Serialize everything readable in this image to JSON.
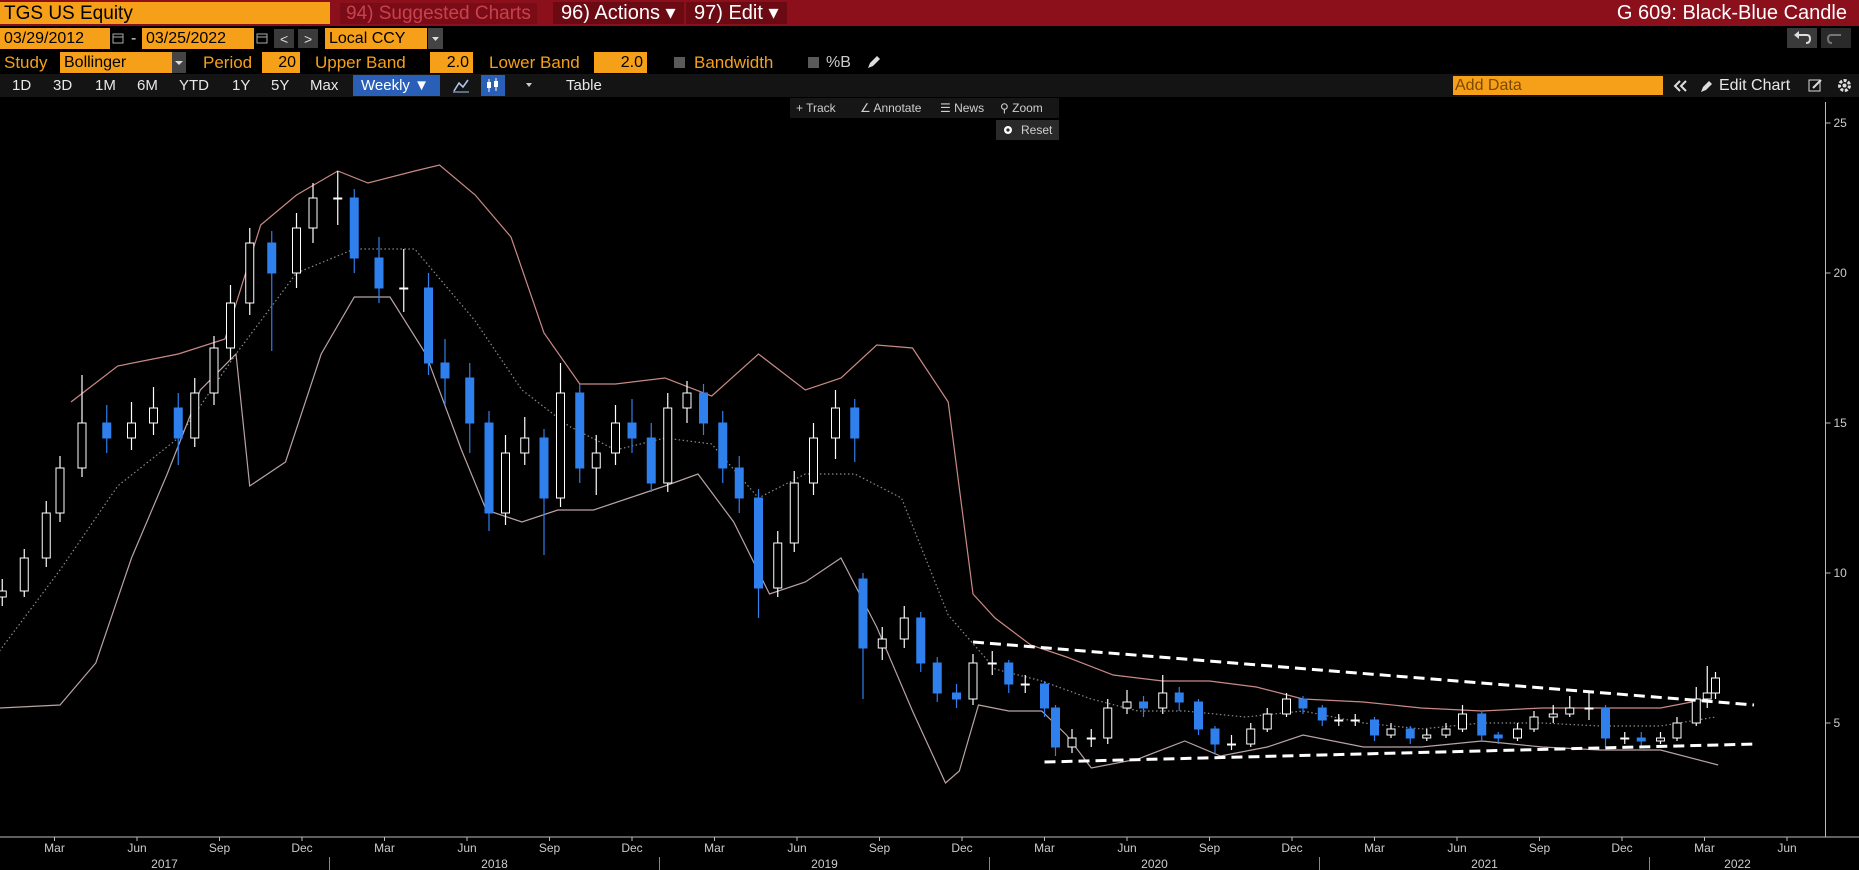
{
  "ui": {
    "top_bar": {
      "ticker": "TGS US Equity",
      "suggested": "94) Suggested Charts",
      "actions": "96) Actions ▾",
      "edit": "97) Edit ▾",
      "chart_name": "G 609: Black-Blue Candle"
    },
    "range_bar": {
      "start": "03/29/2012",
      "dash": "-",
      "end": "03/25/2022",
      "prev": "<",
      "next": ">",
      "currency": "Local CCY"
    },
    "study_bar": {
      "study_label": "Study",
      "study": "Bollinger",
      "period_label": "Period",
      "period": "20",
      "upper_label": "Upper Band",
      "upper": "2.0",
      "lower_label": "Lower Band",
      "lower": "2.0",
      "bandwidth": "Bandwidth",
      "pct_b": "%B"
    },
    "toolbar": {
      "periods": [
        "1D",
        "3D",
        "1M",
        "6M",
        "YTD",
        "1Y",
        "5Y",
        "Max"
      ],
      "frequency": "Weekly ▼",
      "table": "Table",
      "add_data": "Add Data",
      "edit_chart": "Edit Chart"
    },
    "chart_tools": [
      "Track",
      "Annotate",
      "News",
      "Zoom"
    ],
    "reset": "Reset"
  },
  "chart_data": {
    "type": "candlestick",
    "up_color": "#ffffff",
    "down_color": "#2f80ed",
    "y_axis": "right",
    "grid": false,
    "xlim": [
      0,
      66.4
    ],
    "ylim": [
      1.2,
      25.7
    ],
    "yticks": [
      5,
      10,
      15,
      20,
      25
    ],
    "xticks": [
      {
        "value": 2,
        "label": "Mar"
      },
      {
        "value": 5,
        "label": "Jun"
      },
      {
        "value": 8,
        "label": "Sep"
      },
      {
        "value": 11,
        "label": "Dec"
      },
      {
        "value": 14,
        "label": "Mar"
      },
      {
        "value": 17,
        "label": "Jun"
      },
      {
        "value": 20,
        "label": "Sep"
      },
      {
        "value": 23,
        "label": "Dec"
      },
      {
        "value": 26,
        "label": "Mar"
      },
      {
        "value": 29,
        "label": "Jun"
      },
      {
        "value": 32,
        "label": "Sep"
      },
      {
        "value": 35,
        "label": "Dec"
      },
      {
        "value": 38,
        "label": "Mar"
      },
      {
        "value": 41,
        "label": "Jun"
      },
      {
        "value": 44,
        "label": "Sep"
      },
      {
        "value": 47,
        "label": "Dec"
      },
      {
        "value": 50,
        "label": "Mar"
      },
      {
        "value": 53,
        "label": "Jun"
      },
      {
        "value": 56,
        "label": "Sep"
      },
      {
        "value": 59,
        "label": "Dec"
      },
      {
        "value": 62,
        "label": "Mar"
      },
      {
        "value": 65,
        "label": "Jun"
      }
    ],
    "year_ticks": [
      {
        "value": 0,
        "label": "2017"
      },
      {
        "value": 12,
        "label": "2018"
      },
      {
        "value": 24,
        "label": "2019"
      },
      {
        "value": 36,
        "label": "2020"
      },
      {
        "value": 48,
        "label": "2021"
      },
      {
        "value": 60,
        "label": "2022"
      }
    ],
    "x": [
      0.1,
      0.9,
      1.7,
      2.2,
      3.0,
      3.9,
      4.8,
      5.6,
      6.5,
      7.1,
      7.8,
      8.4,
      9.1,
      9.9,
      10.8,
      11.4,
      12.3,
      12.9,
      13.8,
      14.7,
      15.6,
      16.2,
      17.1,
      17.8,
      18.4,
      19.1,
      19.8,
      20.4,
      21.1,
      21.7,
      22.4,
      23.0,
      23.7,
      24.3,
      25.0,
      25.6,
      26.3,
      26.9,
      27.6,
      28.3,
      28.9,
      29.6,
      30.4,
      31.1,
      31.4,
      32.1,
      32.9,
      33.5,
      34.1,
      34.8,
      35.4,
      36.1,
      36.7,
      37.3,
      38.0,
      38.4,
      39.0,
      39.7,
      40.3,
      41.0,
      41.6,
      42.3,
      42.9,
      43.6,
      44.2,
      44.8,
      45.5,
      46.1,
      46.8,
      47.4,
      48.1,
      48.7,
      49.3,
      50.0,
      50.6,
      51.3,
      51.9,
      52.6,
      53.2,
      53.9,
      54.5,
      55.2,
      55.8,
      56.5,
      57.1,
      57.8,
      58.4,
      59.1,
      59.7,
      60.4,
      61.0,
      61.7,
      62.1,
      62.4
    ],
    "candles": [
      [
        9.2,
        9.8,
        8.9,
        9.4
      ],
      [
        9.4,
        10.8,
        9.2,
        10.5
      ],
      [
        10.5,
        12.4,
        10.2,
        12
      ],
      [
        12,
        13.9,
        11.7,
        13.5
      ],
      [
        13.5,
        16.6,
        13.2,
        15
      ],
      [
        15,
        15.6,
        14,
        14.5
      ],
      [
        14.5,
        15.7,
        14.1,
        15
      ],
      [
        15,
        16.2,
        14.6,
        15.5
      ],
      [
        15.5,
        16,
        13.6,
        14.5
      ],
      [
        14.5,
        16.5,
        14.2,
        16
      ],
      [
        16,
        17.9,
        15.6,
        17.5
      ],
      [
        17.5,
        19.6,
        17.1,
        19
      ],
      [
        19,
        21.5,
        18.6,
        21
      ],
      [
        21,
        21.4,
        17.4,
        20
      ],
      [
        20,
        22,
        19.5,
        21.5
      ],
      [
        21.5,
        23,
        21,
        22.5
      ],
      [
        22.5,
        23.4,
        21.6,
        22.5
      ],
      [
        22.5,
        22.8,
        20,
        20.5
      ],
      [
        20.5,
        21.2,
        19,
        19.5
      ],
      [
        19.5,
        20.8,
        18.7,
        19.5
      ],
      [
        19.5,
        20,
        16.6,
        17
      ],
      [
        17,
        17.8,
        15.6,
        16.5
      ],
      [
        16.5,
        17,
        14,
        15
      ],
      [
        15,
        15.4,
        11.4,
        12
      ],
      [
        12,
        14.6,
        11.6,
        14
      ],
      [
        14,
        15.2,
        13.6,
        14.5
      ],
      [
        14.5,
        14.8,
        10.6,
        12.5
      ],
      [
        12.5,
        17,
        12.2,
        16
      ],
      [
        16,
        16.3,
        13,
        13.5
      ],
      [
        13.5,
        14.6,
        12.6,
        14
      ],
      [
        14,
        15.6,
        13.6,
        15
      ],
      [
        15,
        15.8,
        14,
        14.5
      ],
      [
        14.5,
        15,
        12.7,
        13
      ],
      [
        13,
        16,
        12.7,
        15.5
      ],
      [
        15.5,
        16.4,
        15,
        16
      ],
      [
        16,
        16.3,
        14.6,
        15
      ],
      [
        15,
        15.4,
        13,
        13.5
      ],
      [
        13.5,
        13.9,
        12,
        12.5
      ],
      [
        12.5,
        12.8,
        8.5,
        9.5
      ],
      [
        9.5,
        11.4,
        9.2,
        11
      ],
      [
        11,
        13.4,
        10.7,
        13
      ],
      [
        13,
        15,
        12.6,
        14.5
      ],
      [
        14.5,
        16.1,
        13.8,
        15.5
      ],
      [
        15.5,
        15.8,
        13.7,
        14.5
      ],
      [
        9.8,
        10,
        5.8,
        7.5
      ],
      [
        7.5,
        8.2,
        7.1,
        7.8
      ],
      [
        7.8,
        8.9,
        7.5,
        8.5
      ],
      [
        8.5,
        8.7,
        6.7,
        7
      ],
      [
        7,
        7.2,
        5.7,
        6
      ],
      [
        6,
        6.3,
        5.5,
        5.8
      ],
      [
        5.8,
        7.3,
        5.6,
        7
      ],
      [
        7,
        7.4,
        6.6,
        7
      ],
      [
        7,
        7.1,
        6,
        6.3
      ],
      [
        6.3,
        6.6,
        6,
        6.3
      ],
      [
        6.3,
        6.4,
        5.2,
        5.5
      ],
      [
        5.5,
        5.6,
        3.9,
        4.2
      ],
      [
        4.2,
        4.8,
        4,
        4.5
      ],
      [
        4.5,
        4.8,
        4.2,
        4.5
      ],
      [
        4.5,
        5.8,
        4.3,
        5.5
      ],
      [
        5.5,
        6.1,
        5.3,
        5.7
      ],
      [
        5.7,
        5.9,
        5.2,
        5.5
      ],
      [
        5.5,
        6.6,
        5.3,
        6
      ],
      [
        6,
        6.2,
        5.4,
        5.7
      ],
      [
        5.7,
        5.8,
        4.6,
        4.8
      ],
      [
        4.8,
        4.9,
        4,
        4.3
      ],
      [
        4.3,
        4.6,
        4.1,
        4.3
      ],
      [
        4.3,
        5,
        4.2,
        4.8
      ],
      [
        4.8,
        5.5,
        4.7,
        5.3
      ],
      [
        5.3,
        6,
        5.2,
        5.8
      ],
      [
        5.8,
        5.9,
        5.3,
        5.5
      ],
      [
        5.5,
        5.6,
        4.9,
        5.1
      ],
      [
        5.1,
        5.3,
        4.9,
        5.1
      ],
      [
        5.1,
        5.3,
        4.9,
        5.1
      ],
      [
        5.1,
        5.2,
        4.4,
        4.6
      ],
      [
        4.6,
        5,
        4.5,
        4.8
      ],
      [
        4.8,
        4.9,
        4.3,
        4.5
      ],
      [
        4.5,
        4.8,
        4.4,
        4.6
      ],
      [
        4.6,
        5,
        4.5,
        4.8
      ],
      [
        4.8,
        5.6,
        4.7,
        5.3
      ],
      [
        5.3,
        5.4,
        4.4,
        4.6
      ],
      [
        4.6,
        4.7,
        4.3,
        4.5
      ],
      [
        4.5,
        5,
        4.4,
        4.8
      ],
      [
        4.8,
        5.4,
        4.7,
        5.2
      ],
      [
        5.2,
        5.6,
        5,
        5.3
      ],
      [
        5.3,
        5.9,
        5.2,
        5.5
      ],
      [
        5.5,
        6,
        5.1,
        5.5
      ],
      [
        5.5,
        5.6,
        4.2,
        4.5
      ],
      [
        4.5,
        4.7,
        4.3,
        4.5
      ],
      [
        4.5,
        4.7,
        4.2,
        4.4
      ],
      [
        4.4,
        4.7,
        4.3,
        4.5
      ],
      [
        4.5,
        5.2,
        4.4,
        5
      ],
      [
        5,
        6.2,
        4.9,
        5.8
      ],
      [
        5.8,
        6.9,
        5.5,
        6
      ],
      [
        6,
        6.7,
        5.8,
        6.5
      ]
    ],
    "bands": [
      {
        "color": "#c98a86",
        "style": "solid",
        "x": [
          2.6,
          4.3,
          6.5,
          8.2,
          9.5,
          10.8,
          12.3,
          13.4,
          15.1,
          16.0,
          17.3,
          18.6,
          19.8,
          21.1,
          22.4,
          24.2,
          25.9,
          27.6,
          29.3,
          30.6,
          31.9,
          33.2,
          34.5,
          35.4,
          36.2,
          37.5,
          38.8,
          40.5,
          42.3,
          44.0,
          45.7,
          47.4,
          49.6,
          51.7,
          53.9,
          56.1,
          58.2,
          60.4,
          62.1
        ],
        "values": [
          15.7,
          16.9,
          17.3,
          17.8,
          21.6,
          22.6,
          23.4,
          23,
          23.4,
          23.6,
          22.6,
          21.2,
          18,
          16.3,
          16.3,
          16.5,
          15.9,
          17.3,
          16.1,
          16.5,
          17.6,
          17.5,
          15.7,
          9.3,
          8.5,
          7.6,
          7.2,
          6.6,
          6.4,
          6.4,
          6.2,
          5.8,
          5.7,
          5.5,
          5.4,
          5.5,
          5.5,
          5.5,
          5.8
        ]
      },
      {
        "color": "#8a8a8a",
        "style": "dotted",
        "x": [
          0.0,
          2.2,
          4.3,
          6.5,
          8.6,
          10.8,
          12.9,
          15.1,
          17.3,
          19.0,
          20.7,
          22.4,
          24.2,
          25.9,
          27.6,
          29.3,
          31.1,
          32.8,
          34.5,
          36.2,
          37.9,
          39.7,
          41.4,
          43.1,
          45.3,
          47.4,
          49.6,
          51.7,
          53.9,
          56.1,
          58.2,
          60.4,
          62.4
        ],
        "values": [
          7.4,
          10.1,
          12.9,
          14.5,
          17.3,
          20,
          20.8,
          20.8,
          18.4,
          16.1,
          14.9,
          14.1,
          14.5,
          14.3,
          12.5,
          13.3,
          13.3,
          12.5,
          8.6,
          6.8,
          6.4,
          5.8,
          5.4,
          5.4,
          5.2,
          5.4,
          5,
          4.8,
          5,
          5,
          4.9,
          4.9,
          5.2
        ]
      },
      {
        "color": "#b9a3a3",
        "style": "solid",
        "x": [
          0.0,
          2.2,
          3.5,
          4.8,
          6.1,
          7.3,
          8.6,
          9.1,
          10.4,
          11.7,
          12.9,
          14.2,
          15.5,
          16.8,
          17.7,
          19.0,
          20.3,
          21.6,
          22.9,
          24.2,
          25.4,
          26.7,
          28.0,
          29.3,
          30.6,
          31.9,
          33.2,
          34.4,
          34.9,
          35.6,
          36.7,
          37.9,
          38.8,
          39.7,
          41.4,
          43.1,
          44.4,
          46.1,
          47.4,
          49.6,
          51.7,
          53.9,
          56.1,
          58.2,
          60.4,
          62.5
        ],
        "values": [
          5.5,
          5.6,
          7,
          10.5,
          13.3,
          16.1,
          17.3,
          12.9,
          13.7,
          17.3,
          19.2,
          19.2,
          17.3,
          14.1,
          12.1,
          11.7,
          12.1,
          12.1,
          12.5,
          12.9,
          13.3,
          11.7,
          9.3,
          9.7,
          10.5,
          8.2,
          5.4,
          3,
          3.4,
          5.6,
          5.4,
          5.4,
          4.6,
          3.5,
          3.8,
          4.4,
          3.9,
          4.2,
          4.6,
          4.2,
          4.2,
          4.4,
          4.2,
          4.1,
          4.1,
          3.6
        ]
      }
    ],
    "trendlines": [
      {
        "color": "#ffffff",
        "style": "dashed",
        "x": [
          35.4,
          63.8
        ],
        "values": [
          7.7,
          5.6
        ]
      },
      {
        "color": "#ffffff",
        "style": "dashed",
        "x": [
          38.0,
          63.9
        ],
        "values": [
          3.7,
          4.3
        ]
      }
    ]
  }
}
